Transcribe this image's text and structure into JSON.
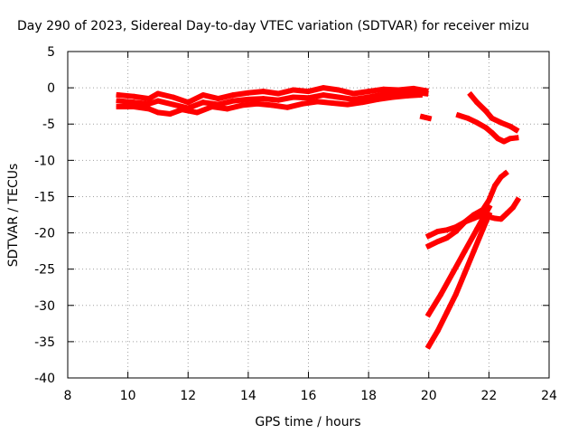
{
  "chart_data": {
    "type": "scatter",
    "title": "Day 290 of 2023, Sidereal Day-to-day VTEC variation (SDTVAR) for receiver mizu",
    "xlabel": "GPS time / hours",
    "ylabel": "SDTVAR / TECUs",
    "xlim": [
      8,
      24
    ],
    "ylim": [
      -40,
      5
    ],
    "xticks": [
      8,
      10,
      12,
      14,
      16,
      18,
      20,
      22,
      24
    ],
    "yticks": [
      5,
      0,
      -5,
      -10,
      -15,
      -20,
      -25,
      -30,
      -35,
      -40
    ],
    "grid": true,
    "color": "#ff0000",
    "series": [
      {
        "points": [
          [
            9.7,
            -1.0
          ],
          [
            10.2,
            -1.2
          ],
          [
            10.7,
            -1.5
          ],
          [
            11.0,
            -0.8
          ],
          [
            11.5,
            -1.3
          ],
          [
            12.0,
            -2.0
          ],
          [
            12.5,
            -1.0
          ],
          [
            13.0,
            -1.5
          ],
          [
            13.5,
            -1.0
          ],
          [
            14.0,
            -0.7
          ],
          [
            14.5,
            -0.5
          ],
          [
            15.0,
            -0.8
          ],
          [
            15.5,
            -0.3
          ],
          [
            16.0,
            -0.5
          ],
          [
            16.5,
            0.0
          ],
          [
            17.0,
            -0.3
          ],
          [
            17.5,
            -0.8
          ],
          [
            18.0,
            -0.5
          ],
          [
            18.5,
            -0.2
          ],
          [
            19.0,
            -0.3
          ],
          [
            19.5,
            -0.1
          ],
          [
            19.9,
            -0.4
          ]
        ]
      },
      {
        "points": [
          [
            9.7,
            -1.8
          ],
          [
            10.2,
            -2.0
          ],
          [
            10.7,
            -2.2
          ],
          [
            11.0,
            -1.8
          ],
          [
            11.5,
            -2.3
          ],
          [
            12.0,
            -2.8
          ],
          [
            12.5,
            -2.0
          ],
          [
            13.0,
            -2.3
          ],
          [
            13.5,
            -1.8
          ],
          [
            14.0,
            -1.6
          ],
          [
            14.5,
            -1.5
          ],
          [
            15.0,
            -1.7
          ],
          [
            15.5,
            -1.3
          ],
          [
            16.0,
            -1.4
          ],
          [
            16.5,
            -1.0
          ],
          [
            17.0,
            -1.3
          ],
          [
            17.5,
            -1.6
          ],
          [
            18.0,
            -1.3
          ],
          [
            18.5,
            -0.9
          ],
          [
            19.0,
            -0.8
          ],
          [
            19.5,
            -0.6
          ],
          [
            19.9,
            -0.8
          ]
        ]
      },
      {
        "points": [
          [
            9.7,
            -2.6
          ],
          [
            10.2,
            -2.6
          ],
          [
            10.7,
            -2.9
          ],
          [
            11.0,
            -3.4
          ],
          [
            11.4,
            -3.6
          ],
          [
            11.8,
            -3.0
          ],
          [
            12.3,
            -3.4
          ],
          [
            12.8,
            -2.6
          ],
          [
            13.3,
            -2.9
          ],
          [
            13.8,
            -2.4
          ],
          [
            14.3,
            -2.2
          ],
          [
            14.8,
            -2.4
          ],
          [
            15.3,
            -2.7
          ],
          [
            15.8,
            -2.2
          ],
          [
            16.3,
            -1.9
          ],
          [
            16.8,
            -2.1
          ],
          [
            17.3,
            -2.3
          ],
          [
            17.8,
            -2.0
          ],
          [
            18.3,
            -1.6
          ],
          [
            18.8,
            -1.3
          ],
          [
            19.3,
            -1.1
          ],
          [
            19.7,
            -1.0
          ]
        ]
      },
      {
        "points": [
          [
            19.8,
            -4.0
          ],
          [
            19.9,
            -4.1
          ],
          [
            20.0,
            -4.2
          ]
        ]
      },
      {
        "points": [
          [
            21.0,
            -3.8
          ],
          [
            21.3,
            -4.2
          ],
          [
            21.6,
            -4.8
          ],
          [
            21.9,
            -5.5
          ],
          [
            22.1,
            -6.2
          ],
          [
            22.3,
            -7.0
          ],
          [
            22.5,
            -7.4
          ],
          [
            22.7,
            -7.0
          ],
          [
            22.9,
            -6.9
          ]
        ]
      },
      {
        "points": [
          [
            21.4,
            -1.0
          ],
          [
            21.6,
            -2.0
          ],
          [
            21.9,
            -3.2
          ],
          [
            22.1,
            -4.2
          ],
          [
            22.4,
            -4.8
          ],
          [
            22.7,
            -5.3
          ],
          [
            22.9,
            -5.8
          ]
        ]
      },
      {
        "points": [
          [
            20.0,
            -20.4
          ],
          [
            20.3,
            -19.8
          ],
          [
            20.6,
            -19.6
          ],
          [
            20.9,
            -19.2
          ],
          [
            21.2,
            -18.5
          ],
          [
            21.5,
            -18.0
          ],
          [
            21.8,
            -17.5
          ],
          [
            22.0,
            -17.8
          ],
          [
            22.2,
            -18.0
          ],
          [
            22.4,
            -18.1
          ],
          [
            22.6,
            -17.3
          ],
          [
            22.8,
            -16.5
          ],
          [
            22.95,
            -15.5
          ]
        ]
      },
      {
        "points": [
          [
            20.0,
            -21.8
          ],
          [
            20.3,
            -21.2
          ],
          [
            20.6,
            -20.7
          ],
          [
            20.9,
            -19.8
          ],
          [
            21.2,
            -18.5
          ],
          [
            21.5,
            -17.5
          ],
          [
            21.8,
            -16.8
          ],
          [
            22.0,
            -15.5
          ],
          [
            22.2,
            -13.5
          ],
          [
            22.4,
            -12.3
          ],
          [
            22.55,
            -11.8
          ]
        ]
      },
      {
        "points": [
          [
            20.0,
            -31.2
          ],
          [
            20.4,
            -28.5
          ],
          [
            20.8,
            -25.5
          ],
          [
            21.2,
            -22.5
          ],
          [
            21.6,
            -19.5
          ],
          [
            22.0,
            -16.5
          ]
        ]
      },
      {
        "points": [
          [
            20.0,
            -35.6
          ],
          [
            20.3,
            -33.5
          ],
          [
            20.6,
            -31.0
          ],
          [
            20.9,
            -28.5
          ],
          [
            21.2,
            -25.5
          ],
          [
            21.5,
            -22.5
          ],
          [
            21.8,
            -19.5
          ],
          [
            22.0,
            -17.5
          ]
        ]
      }
    ]
  }
}
